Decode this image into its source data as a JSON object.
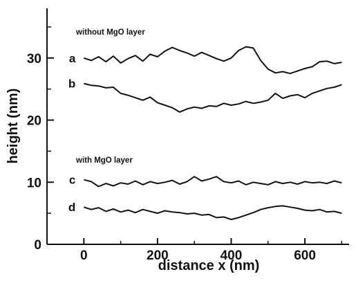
{
  "chart_data": {
    "type": "line",
    "xlabel": "distance  x  (nm)",
    "ylabel": "height  (nm)",
    "xlim": [
      -100,
      720
    ],
    "ylim": [
      0,
      38
    ],
    "x_ticks": [
      0,
      200,
      400,
      600
    ],
    "y_ticks": [
      0,
      10,
      20,
      30
    ],
    "grid": false,
    "annotations": [
      "without MgO layer",
      "with MgO layer"
    ],
    "series": [
      {
        "name": "a",
        "x": [
          0,
          20,
          40,
          60,
          80,
          100,
          120,
          140,
          160,
          180,
          200,
          220,
          240,
          260,
          280,
          300,
          320,
          340,
          360,
          380,
          400,
          420,
          440,
          460,
          480,
          500,
          520,
          540,
          560,
          580,
          600,
          620,
          640,
          660,
          680,
          700
        ],
        "values": [
          30.0,
          29.6,
          30.2,
          29.4,
          30.3,
          29.2,
          29.9,
          30.4,
          29.5,
          30.6,
          30.2,
          31.1,
          31.7,
          31.2,
          30.8,
          30.3,
          30.9,
          30.4,
          29.9,
          29.5,
          30.0,
          31.2,
          31.8,
          31.6,
          29.6,
          28.2,
          27.6,
          27.8,
          27.5,
          27.9,
          28.3,
          28.6,
          29.4,
          29.5,
          29.1,
          29.3
        ]
      },
      {
        "name": "b",
        "x": [
          0,
          20,
          40,
          60,
          80,
          100,
          120,
          140,
          160,
          180,
          200,
          220,
          240,
          260,
          280,
          300,
          320,
          340,
          360,
          380,
          400,
          420,
          440,
          460,
          480,
          500,
          520,
          540,
          560,
          580,
          600,
          620,
          640,
          660,
          680,
          700
        ],
        "values": [
          25.9,
          25.6,
          25.5,
          25.2,
          25.3,
          24.3,
          24.0,
          23.6,
          23.2,
          23.7,
          22.8,
          22.4,
          22.0,
          21.3,
          21.8,
          22.1,
          21.9,
          22.3,
          22.2,
          22.7,
          22.4,
          22.6,
          23.0,
          22.7,
          22.9,
          23.2,
          24.3,
          23.5,
          23.9,
          24.1,
          23.6,
          24.3,
          24.7,
          25.1,
          25.3,
          25.7
        ]
      },
      {
        "name": "c",
        "x": [
          0,
          20,
          40,
          60,
          80,
          100,
          120,
          140,
          160,
          180,
          200,
          220,
          240,
          260,
          280,
          300,
          320,
          340,
          360,
          380,
          400,
          420,
          440,
          460,
          480,
          500,
          520,
          540,
          560,
          580,
          600,
          620,
          640,
          660,
          680,
          700
        ],
        "values": [
          10.4,
          10.1,
          9.3,
          9.8,
          9.4,
          9.9,
          9.7,
          10.2,
          9.6,
          10.1,
          9.8,
          10.0,
          10.3,
          9.7,
          10.1,
          10.9,
          10.2,
          10.5,
          10.9,
          10.1,
          9.9,
          10.2,
          9.6,
          10.0,
          9.8,
          9.6,
          10.1,
          9.8,
          10.0,
          9.7,
          10.1,
          9.9,
          10.0,
          9.8,
          10.2,
          9.9
        ]
      },
      {
        "name": "d",
        "x": [
          0,
          20,
          40,
          60,
          80,
          100,
          120,
          140,
          160,
          180,
          200,
          220,
          240,
          260,
          280,
          300,
          320,
          340,
          360,
          380,
          400,
          420,
          440,
          460,
          480,
          500,
          520,
          540,
          560,
          580,
          600,
          620,
          640,
          660,
          680,
          700
        ],
        "values": [
          6.0,
          5.6,
          5.9,
          5.3,
          5.7,
          5.2,
          5.5,
          5.1,
          5.6,
          5.3,
          5.0,
          5.4,
          5.2,
          5.1,
          4.9,
          5.0,
          4.7,
          4.8,
          4.3,
          4.4,
          4.0,
          4.3,
          4.7,
          5.1,
          5.6,
          5.9,
          6.1,
          6.2,
          6.0,
          5.8,
          5.5,
          5.4,
          5.6,
          5.2,
          5.3,
          5.0
        ]
      }
    ]
  }
}
